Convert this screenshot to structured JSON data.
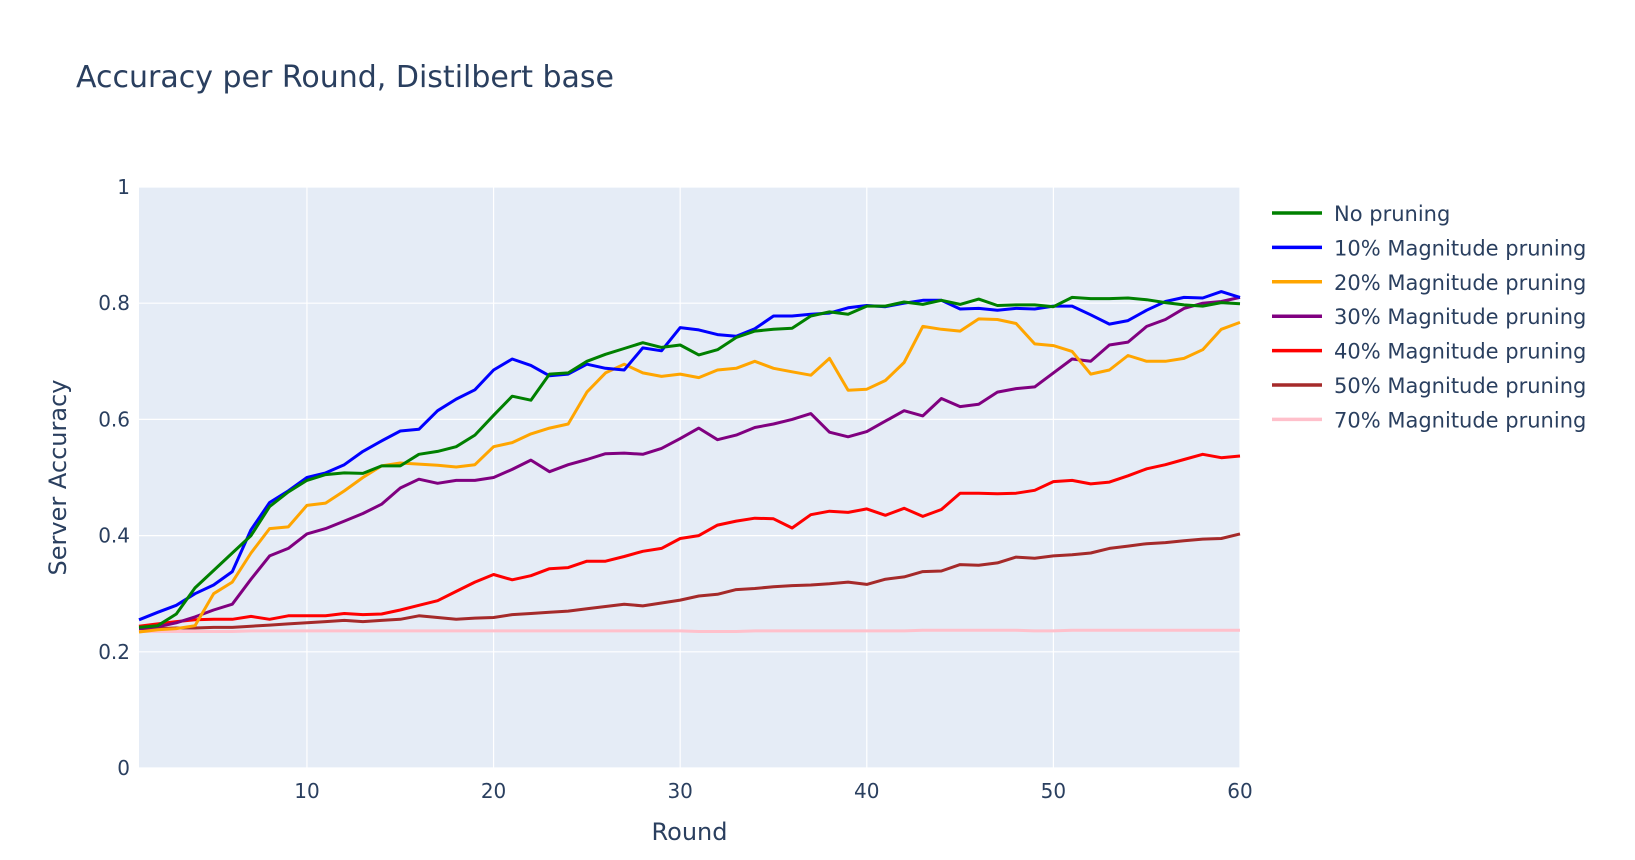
{
  "chart_data": {
    "type": "line",
    "title": "Accuracy per Round, Distilbert base",
    "xlabel": "Round",
    "ylabel": "Server Accuracy",
    "xlim": [
      1,
      60
    ],
    "ylim": [
      0,
      1
    ],
    "xticks": [
      10,
      20,
      30,
      40,
      50,
      60
    ],
    "yticks": [
      0,
      0.2,
      0.4,
      0.6,
      0.8,
      1
    ],
    "ytick_labels": [
      "0",
      "0.2",
      "0.4",
      "0.6",
      "0.8",
      "1"
    ],
    "grid": true,
    "legend_position": "right",
    "plot_background": "#e5ecf6",
    "x": [
      1,
      2,
      3,
      4,
      5,
      6,
      7,
      8,
      9,
      10,
      11,
      12,
      13,
      14,
      15,
      16,
      17,
      18,
      19,
      20,
      21,
      22,
      23,
      24,
      25,
      26,
      27,
      28,
      29,
      30,
      31,
      32,
      33,
      34,
      35,
      36,
      37,
      38,
      39,
      40,
      41,
      42,
      43,
      44,
      45,
      46,
      47,
      48,
      49,
      50,
      51,
      52,
      53,
      54,
      55,
      56,
      57,
      58,
      59,
      60
    ],
    "series": [
      {
        "name": "No pruning",
        "color": "#008000",
        "values": [
          0.242,
          0.245,
          0.265,
          0.31,
          0.34,
          0.37,
          0.4,
          0.45,
          0.475,
          0.495,
          0.505,
          0.508,
          0.507,
          0.52,
          0.52,
          0.54,
          0.545,
          0.553,
          0.573,
          0.607,
          0.64,
          0.633,
          0.678,
          0.68,
          0.7,
          0.712,
          0.722,
          0.732,
          0.724,
          0.728,
          0.711,
          0.72,
          0.741,
          0.752,
          0.755,
          0.757,
          0.778,
          0.785,
          0.781,
          0.795,
          0.795,
          0.802,
          0.798,
          0.805,
          0.798,
          0.807,
          0.796,
          0.797,
          0.797,
          0.794,
          0.81,
          0.808,
          0.808,
          0.809,
          0.806,
          0.801,
          0.797,
          0.795,
          0.801,
          0.799
        ]
      },
      {
        "name": "10% Magnitude pruning",
        "color": "#0000ff",
        "values": [
          0.255,
          0.268,
          0.28,
          0.3,
          0.315,
          0.338,
          0.41,
          0.457,
          0.477,
          0.5,
          0.508,
          0.522,
          0.545,
          0.563,
          0.58,
          0.583,
          0.615,
          0.635,
          0.651,
          0.685,
          0.704,
          0.693,
          0.675,
          0.678,
          0.695,
          0.688,
          0.685,
          0.723,
          0.718,
          0.758,
          0.754,
          0.746,
          0.743,
          0.756,
          0.778,
          0.778,
          0.781,
          0.783,
          0.792,
          0.796,
          0.794,
          0.8,
          0.805,
          0.805,
          0.79,
          0.791,
          0.788,
          0.791,
          0.79,
          0.795,
          0.795,
          0.78,
          0.764,
          0.77,
          0.788,
          0.803,
          0.81,
          0.809,
          0.82,
          0.81
        ]
      },
      {
        "name": "20% Magnitude pruning",
        "color": "#ffa500",
        "values": [
          0.234,
          0.238,
          0.24,
          0.245,
          0.3,
          0.32,
          0.37,
          0.412,
          0.415,
          0.452,
          0.456,
          0.477,
          0.5,
          0.52,
          0.525,
          0.523,
          0.521,
          0.518,
          0.522,
          0.553,
          0.56,
          0.575,
          0.585,
          0.592,
          0.647,
          0.68,
          0.695,
          0.68,
          0.674,
          0.678,
          0.672,
          0.685,
          0.688,
          0.7,
          0.688,
          0.682,
          0.676,
          0.705,
          0.65,
          0.652,
          0.667,
          0.698,
          0.76,
          0.755,
          0.752,
          0.773,
          0.772,
          0.765,
          0.73,
          0.727,
          0.717,
          0.678,
          0.685,
          0.71,
          0.7,
          0.7,
          0.705,
          0.72,
          0.755,
          0.767
        ]
      },
      {
        "name": "30% Magnitude pruning",
        "color": "#800080",
        "values": [
          0.24,
          0.243,
          0.25,
          0.26,
          0.272,
          0.282,
          0.325,
          0.365,
          0.378,
          0.403,
          0.412,
          0.425,
          0.438,
          0.454,
          0.482,
          0.497,
          0.49,
          0.495,
          0.495,
          0.5,
          0.514,
          0.53,
          0.51,
          0.522,
          0.531,
          0.541,
          0.542,
          0.54,
          0.55,
          0.567,
          0.585,
          0.565,
          0.573,
          0.586,
          0.592,
          0.6,
          0.61,
          0.578,
          0.57,
          0.579,
          0.597,
          0.615,
          0.606,
          0.636,
          0.622,
          0.626,
          0.647,
          0.653,
          0.656,
          0.68,
          0.704,
          0.7,
          0.728,
          0.733,
          0.76,
          0.772,
          0.791,
          0.8,
          0.803,
          0.81
        ]
      },
      {
        "name": "40% Magnitude pruning",
        "color": "#ff0000",
        "values": [
          0.244,
          0.248,
          0.252,
          0.255,
          0.256,
          0.256,
          0.261,
          0.256,
          0.262,
          0.262,
          0.262,
          0.266,
          0.264,
          0.265,
          0.272,
          0.28,
          0.288,
          0.304,
          0.32,
          0.333,
          0.324,
          0.331,
          0.343,
          0.345,
          0.356,
          0.356,
          0.364,
          0.373,
          0.378,
          0.395,
          0.4,
          0.418,
          0.425,
          0.43,
          0.429,
          0.413,
          0.436,
          0.442,
          0.44,
          0.446,
          0.435,
          0.447,
          0.433,
          0.445,
          0.473,
          0.473,
          0.472,
          0.473,
          0.478,
          0.493,
          0.495,
          0.489,
          0.492,
          0.503,
          0.515,
          0.522,
          0.531,
          0.54,
          0.534,
          0.537
        ]
      },
      {
        "name": "50% Magnitude pruning",
        "color": "#a52a2a",
        "values": [
          0.24,
          0.24,
          0.241,
          0.241,
          0.242,
          0.242,
          0.244,
          0.246,
          0.248,
          0.25,
          0.252,
          0.254,
          0.252,
          0.254,
          0.256,
          0.262,
          0.259,
          0.256,
          0.258,
          0.259,
          0.264,
          0.266,
          0.268,
          0.27,
          0.274,
          0.278,
          0.282,
          0.279,
          0.284,
          0.289,
          0.296,
          0.299,
          0.307,
          0.309,
          0.312,
          0.314,
          0.315,
          0.317,
          0.32,
          0.316,
          0.325,
          0.329,
          0.338,
          0.339,
          0.35,
          0.349,
          0.353,
          0.363,
          0.361,
          0.365,
          0.367,
          0.37,
          0.378,
          0.382,
          0.386,
          0.388,
          0.391,
          0.394,
          0.395,
          0.403
        ]
      },
      {
        "name": "70% Magnitude pruning",
        "color": "#ffc0cb",
        "values": [
          0.235,
          0.235,
          0.235,
          0.235,
          0.235,
          0.235,
          0.236,
          0.236,
          0.236,
          0.236,
          0.236,
          0.236,
          0.236,
          0.236,
          0.236,
          0.236,
          0.236,
          0.236,
          0.236,
          0.236,
          0.236,
          0.236,
          0.236,
          0.236,
          0.236,
          0.236,
          0.236,
          0.236,
          0.236,
          0.236,
          0.235,
          0.235,
          0.235,
          0.236,
          0.236,
          0.236,
          0.236,
          0.236,
          0.236,
          0.236,
          0.236,
          0.236,
          0.237,
          0.237,
          0.237,
          0.237,
          0.237,
          0.237,
          0.236,
          0.236,
          0.237,
          0.237,
          0.237,
          0.237,
          0.237,
          0.237,
          0.237,
          0.237,
          0.237,
          0.237
        ]
      }
    ]
  }
}
